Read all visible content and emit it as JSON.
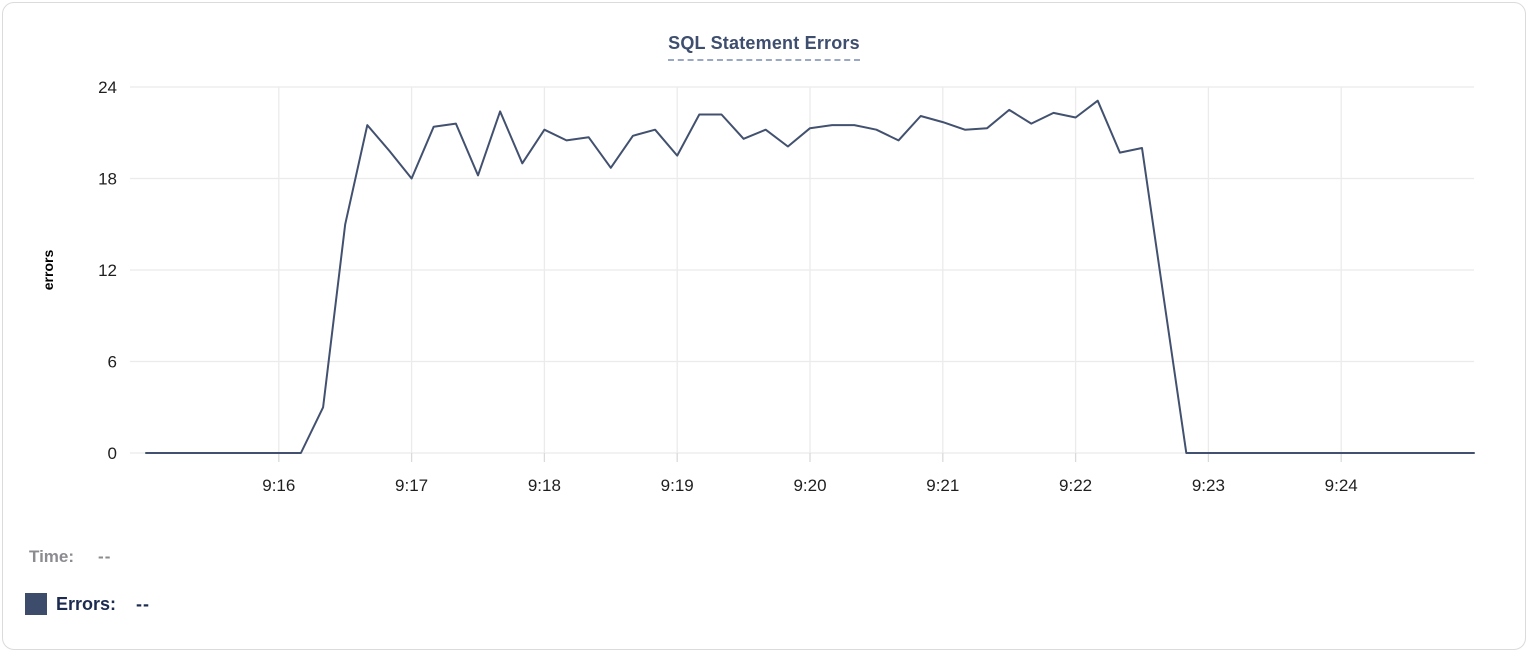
{
  "chart": {
    "title": "SQL Statement Errors",
    "y_axis_label": "errors"
  },
  "readout": {
    "time_label": "Time:",
    "time_value": "--",
    "errors_label": "Errors:",
    "errors_value": "--"
  },
  "colors": {
    "line": "#42516f",
    "title": "#3e4e6e",
    "grid": "#ebebeb",
    "tick_mark": "#dadada",
    "tick_text": "#1f1f1f",
    "swatch": "#3d4c6b",
    "time_row_text": "#8b8b90",
    "errors_row_text": "#1c2b50"
  },
  "chart_data": {
    "type": "line",
    "title": "SQL Statement Errors",
    "xlabel": "",
    "ylabel": "errors",
    "ylim": [
      0,
      24
    ],
    "y_ticks": [
      0,
      6,
      12,
      18,
      24
    ],
    "x_tick_labels": [
      "9:16",
      "9:17",
      "9:18",
      "9:19",
      "9:20",
      "9:21",
      "9:22",
      "9:23",
      "9:24"
    ],
    "grid": true,
    "legend_position": "none",
    "x": [
      "9:15:00",
      "9:15:10",
      "9:15:20",
      "9:15:30",
      "9:15:40",
      "9:15:50",
      "9:16:00",
      "9:16:10",
      "9:16:20",
      "9:16:30",
      "9:16:40",
      "9:16:50",
      "9:17:00",
      "9:17:10",
      "9:17:20",
      "9:17:30",
      "9:17:40",
      "9:17:50",
      "9:18:00",
      "9:18:10",
      "9:18:20",
      "9:18:30",
      "9:18:40",
      "9:18:50",
      "9:19:00",
      "9:19:10",
      "9:19:20",
      "9:19:30",
      "9:19:40",
      "9:19:50",
      "9:20:00",
      "9:20:10",
      "9:20:20",
      "9:20:30",
      "9:20:40",
      "9:20:50",
      "9:21:00",
      "9:21:10",
      "9:21:20",
      "9:21:30",
      "9:21:40",
      "9:21:50",
      "9:22:00",
      "9:22:10",
      "9:22:20",
      "9:22:30",
      "9:22:40",
      "9:22:50",
      "9:23:00",
      "9:23:10",
      "9:23:20",
      "9:23:30",
      "9:23:40",
      "9:23:50",
      "9:24:00",
      "9:24:10",
      "9:24:20",
      "9:24:30",
      "9:24:40",
      "9:24:50",
      "9:25:00"
    ],
    "values": [
      0,
      0,
      0,
      0,
      0,
      0,
      0,
      0,
      3,
      15,
      21.5,
      19.8,
      18,
      21.4,
      21.6,
      18.2,
      22.4,
      19,
      21.2,
      20.5,
      20.7,
      18.7,
      20.8,
      21.2,
      19.5,
      22.2,
      22.2,
      20.6,
      21.2,
      20.1,
      21.3,
      21.5,
      21.5,
      21.2,
      20.5,
      22.1,
      21.7,
      21.2,
      21.3,
      22.5,
      21.6,
      22.3,
      22.0,
      23.1,
      19.7,
      20.0,
      10,
      0,
      0,
      0,
      0,
      0,
      0,
      0,
      0,
      0,
      0,
      0,
      0,
      0,
      0
    ]
  }
}
